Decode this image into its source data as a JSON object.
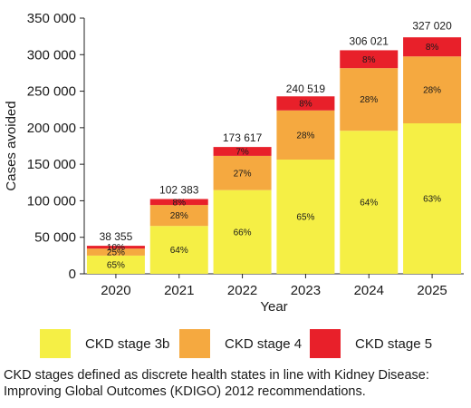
{
  "chart_data": {
    "type": "bar",
    "stacked": true,
    "title": "",
    "xlabel": "Year",
    "ylabel": "Cases avoided",
    "ylim": [
      0,
      350000
    ],
    "yticks": [
      0,
      50000,
      100000,
      150000,
      200000,
      250000,
      300000,
      350000
    ],
    "ytick_labels": [
      "0",
      "50 000",
      "100 000",
      "150 000",
      "200 000",
      "250 000",
      "300 000",
      "350 000"
    ],
    "categories": [
      "2020",
      "2021",
      "2022",
      "2023",
      "2024",
      "2025"
    ],
    "totals": [
      38355,
      102383,
      173617,
      240519,
      306021,
      327020
    ],
    "total_labels": [
      "38 355",
      "102 383",
      "173 617",
      "240 519",
      "306 021",
      "327 020"
    ],
    "series": [
      {
        "name": "CKD stage 3b",
        "color": "#f5ef45",
        "shares": [
          65,
          64,
          66,
          65,
          64,
          63
        ],
        "labels": [
          "65%",
          "64%",
          "66%",
          "65%",
          "64%",
          "63%"
        ]
      },
      {
        "name": "CKD stage 4",
        "color": "#f5a940",
        "shares": [
          25,
          28,
          27,
          28,
          28,
          28
        ],
        "labels": [
          "25%",
          "28%",
          "27%",
          "28%",
          "28%",
          "28%"
        ]
      },
      {
        "name": "CKD stage 5",
        "color": "#e8202a",
        "shares": [
          10,
          8,
          7,
          8,
          8,
          8
        ],
        "labels": [
          "10%",
          "8%",
          "7%",
          "8%",
          "8%",
          "8%"
        ]
      }
    ],
    "legend": "bottom",
    "grid": false
  },
  "legend": {
    "items": [
      {
        "label": "CKD stage 3b",
        "color": "#f5ef45"
      },
      {
        "label": "CKD stage 4",
        "color": "#f5a940"
      },
      {
        "label": "CKD stage 5",
        "color": "#e8202a"
      }
    ]
  },
  "footnote": {
    "line1": "CKD stages defined as discrete health states in line with Kidney Disease:",
    "line2": "Improving Global Outcomes (KDIGO) 2012 recommendations."
  }
}
